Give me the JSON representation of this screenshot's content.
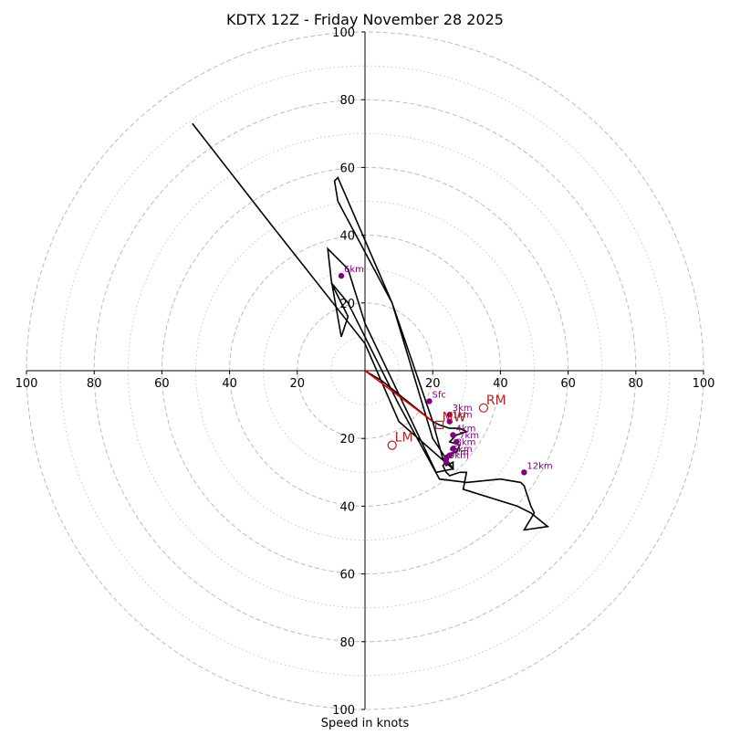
{
  "chart_data": {
    "type": "hodograph",
    "title": "KDTX 12Z - Friday November 28 2025",
    "xlabel": "Speed in knots",
    "range": 100,
    "rings_major": [
      20,
      40,
      60,
      80,
      100
    ],
    "rings_minor": [
      10,
      30,
      50,
      70,
      90
    ],
    "axis_ticks": [
      {
        "value": 100,
        "label": "100"
      },
      {
        "value": 80,
        "label": "80"
      },
      {
        "value": 60,
        "label": "60"
      },
      {
        "value": 40,
        "label": "40"
      },
      {
        "value": 20,
        "label": "20"
      }
    ],
    "hodograph": {
      "u_v": [
        [
          0,
          0
        ],
        [
          5,
          -3
        ],
        [
          10,
          -7
        ],
        [
          15,
          -11
        ],
        [
          20,
          -15
        ],
        [
          22,
          -16
        ],
        [
          25,
          -17
        ],
        [
          28,
          -17
        ],
        [
          30,
          -18
        ],
        [
          27,
          -19
        ],
        [
          25,
          -21
        ],
        [
          28,
          -22
        ],
        [
          27,
          -24
        ],
        [
          24,
          -25
        ],
        [
          24,
          -27
        ],
        [
          23,
          -28
        ],
        [
          24,
          -30
        ],
        [
          25,
          -31
        ],
        [
          28,
          -30
        ],
        [
          30,
          -30
        ],
        [
          29,
          -35
        ],
        [
          45,
          -40
        ],
        [
          49,
          -42
        ],
        [
          54,
          -46
        ],
        [
          47,
          -47
        ],
        [
          50,
          -42
        ],
        [
          49,
          -40
        ],
        [
          47,
          -34
        ],
        [
          46,
          -33
        ],
        [
          40,
          -32
        ],
        [
          30,
          -33
        ],
        [
          22,
          -32
        ],
        [
          10,
          -10
        ],
        [
          -5,
          20
        ],
        [
          -10,
          26
        ],
        [
          -5,
          16
        ],
        [
          -7,
          10
        ],
        [
          -10,
          27
        ],
        [
          -11,
          36
        ],
        [
          -5,
          30
        ],
        [
          0,
          14
        ],
        [
          21,
          -30
        ],
        [
          26,
          -29
        ],
        [
          20,
          -20
        ],
        [
          8,
          20
        ],
        [
          -8,
          57
        ],
        [
          -9,
          56
        ],
        [
          -8,
          50
        ],
        [
          8,
          20
        ],
        [
          20,
          -15
        ],
        [
          23,
          -26
        ],
        [
          24,
          -28
        ],
        [
          26,
          -27
        ],
        [
          26,
          -29
        ],
        [
          10,
          -15
        ],
        [
          0,
          8
        ],
        [
          -30,
          46
        ],
        [
          -51,
          73
        ]
      ],
      "color": "#000000"
    },
    "shear_vector": {
      "u_v": [
        [
          0,
          0
        ],
        [
          20,
          -15
        ]
      ],
      "color": "#e00000"
    },
    "height_markers": [
      {
        "label": "Sfc",
        "u": 19,
        "v": -9
      },
      {
        "label": "3km",
        "u": 25,
        "v": -13
      },
      {
        "label": "6km",
        "u": -7,
        "v": 28
      },
      {
        "label": "12km",
        "u": 47,
        "v": -30
      },
      {
        "label": "1km",
        "u": 25,
        "v": -15
      },
      {
        "label": "4km",
        "u": 26,
        "v": -19
      },
      {
        "label": "7km",
        "u": 27,
        "v": -21
      },
      {
        "label": "5km",
        "u": 25,
        "v": -25
      },
      {
        "label": "8km",
        "u": 26,
        "v": -23
      },
      {
        "label": "2km",
        "u": 24,
        "v": -26
      },
      {
        "label": "9km",
        "u": 24,
        "v": -27
      }
    ],
    "storm_motions": [
      {
        "label": "RM",
        "u": 35,
        "v": -11,
        "marker": "circle"
      },
      {
        "label": "LM",
        "u": 8,
        "v": -22,
        "marker": "circle"
      },
      {
        "label": "MW",
        "u": 22,
        "v": -16,
        "marker": "square"
      }
    ],
    "colors": {
      "grid": "#bbbbbb",
      "marker": "#800080",
      "motion": "#b22222",
      "axis": "#000000"
    }
  }
}
